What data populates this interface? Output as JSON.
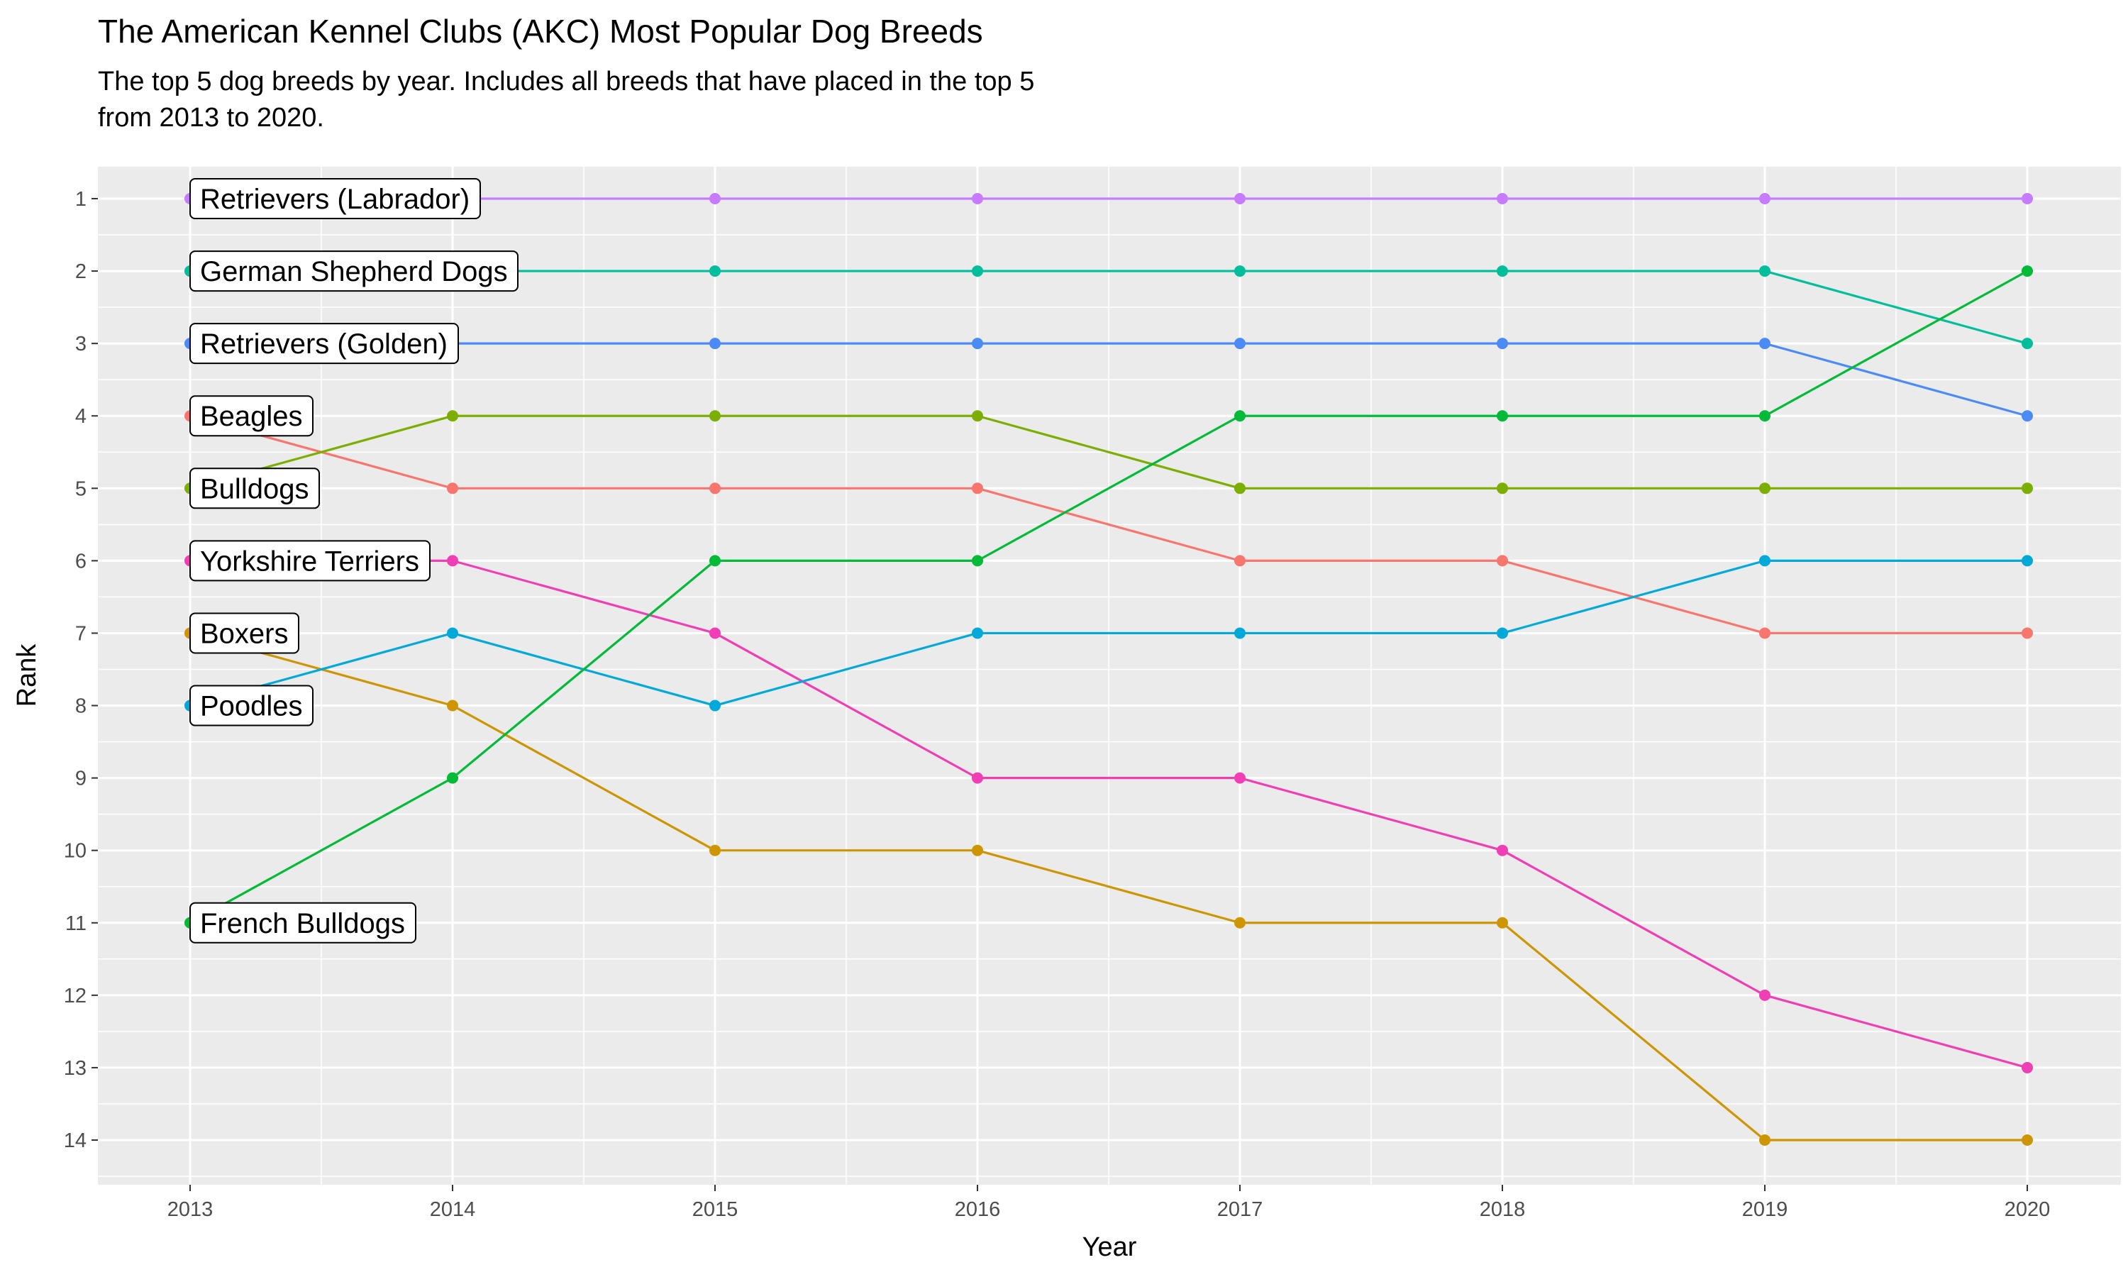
{
  "chart_data": {
    "type": "line",
    "title": "The American Kennel Clubs (AKC) Most Popular Dog Breeds",
    "subtitle_lines": [
      "The top 5 dog breeds by year. Includes all breeds that have placed in the top 5",
      "from 2013 to 2020."
    ],
    "xlabel": "Year",
    "ylabel": "Rank",
    "x": [
      2013,
      2014,
      2015,
      2016,
      2017,
      2018,
      2019,
      2020
    ],
    "ylim": [
      1,
      14
    ],
    "y_reversed": true,
    "y_ticks": [
      1,
      2,
      3,
      4,
      5,
      6,
      7,
      8,
      9,
      10,
      11,
      12,
      13,
      14
    ],
    "grid": true,
    "legend": "direct labels at 2013",
    "series": [
      {
        "name": "Retrievers (Labrador)",
        "color": "#C77CFF",
        "values": [
          1,
          1,
          1,
          1,
          1,
          1,
          1,
          1
        ]
      },
      {
        "name": "German Shepherd Dogs",
        "color": "#00BE9C",
        "values": [
          2,
          2,
          2,
          2,
          2,
          2,
          2,
          3
        ]
      },
      {
        "name": "Retrievers (Golden)",
        "color": "#4B8BF7",
        "values": [
          3,
          3,
          3,
          3,
          3,
          3,
          3,
          4
        ]
      },
      {
        "name": "Beagles",
        "color": "#F8766D",
        "values": [
          4,
          5,
          5,
          5,
          6,
          6,
          7,
          7
        ]
      },
      {
        "name": "Bulldogs",
        "color": "#7CAE00",
        "values": [
          5,
          4,
          4,
          4,
          5,
          5,
          5,
          5
        ]
      },
      {
        "name": "Yorkshire Terriers",
        "color": "#F03FB5",
        "values": [
          6,
          6,
          7,
          9,
          9,
          10,
          12,
          13
        ]
      },
      {
        "name": "Boxers",
        "color": "#CD9600",
        "values": [
          7,
          8,
          10,
          10,
          11,
          11,
          14,
          14
        ]
      },
      {
        "name": "Poodles",
        "color": "#00A9D8",
        "values": [
          8,
          7,
          8,
          7,
          7,
          7,
          6,
          6
        ]
      },
      {
        "name": "French Bulldogs",
        "color": "#00BA38",
        "values": [
          11,
          9,
          6,
          6,
          4,
          4,
          4,
          2
        ]
      }
    ]
  }
}
